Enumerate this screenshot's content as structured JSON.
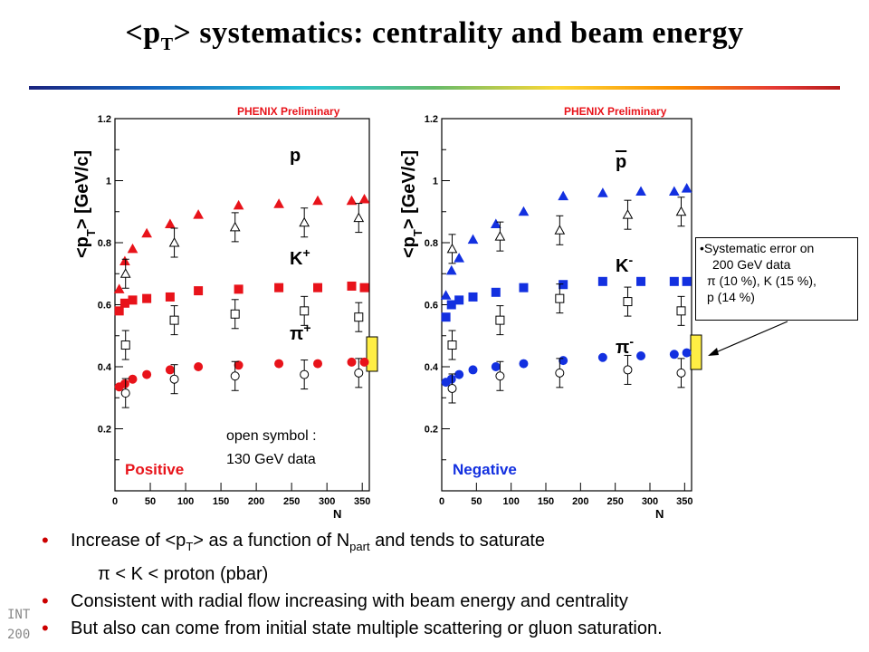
{
  "title": {
    "pre": "<p",
    "sub": "T",
    "post": "> systematics:  centrality and beam energy"
  },
  "footer": {
    "line1": "INT",
    "line2": "200"
  },
  "systematic_note": [
    "•Systematic error on",
    "200 GeV data",
    "π (10 %), K (15 %),",
    "p (14 %)"
  ],
  "colors": {
    "positive": "#e8131a",
    "negative": "#1330e0",
    "syst_band": "#ffee44"
  },
  "bullets": {
    "b1": {
      "pre": "Increase of <p",
      "sub1": "T",
      "mid": "> as a function of N",
      "sub2": "part",
      "post": " and tends to saturate"
    },
    "b1b": "π < K < proton (pbar)",
    "b2": " Consistent with radial flow increasing with beam energy and centrality",
    "b3": "But also can come from initial state multiple scattering or gluon saturation."
  },
  "chart_data": [
    {
      "type": "scatter",
      "panel_label": "Positive",
      "header": "PHENIX Preliminary",
      "ylabel": "<pT> [GeV/c]",
      "xlabel": "N",
      "xlim": [
        0,
        360
      ],
      "ylim": [
        0,
        1.2
      ],
      "xticks": [
        0,
        50,
        100,
        150,
        200,
        250,
        300,
        350
      ],
      "yticks": [
        0.2,
        0.4,
        0.6,
        0.8,
        1,
        1.2
      ],
      "open_symbol_note": [
        "open symbol :",
        "130 GeV data"
      ],
      "series": [
        {
          "name": "p",
          "label": "p",
          "energy": "200 GeV",
          "marker": "filled-triangle",
          "x": [
            6,
            14,
            25,
            45,
            78,
            118,
            175,
            232,
            287,
            335,
            353
          ],
          "y": [
            0.65,
            0.74,
            0.78,
            0.83,
            0.86,
            0.89,
            0.92,
            0.925,
            0.935,
            0.935,
            0.94
          ]
        },
        {
          "name": "K+",
          "label": "K",
          "sup": "+",
          "energy": "200 GeV",
          "marker": "filled-square",
          "x": [
            6,
            14,
            25,
            45,
            78,
            118,
            175,
            232,
            287,
            335,
            353
          ],
          "y": [
            0.58,
            0.605,
            0.615,
            0.62,
            0.625,
            0.645,
            0.65,
            0.655,
            0.655,
            0.66,
            0.655
          ]
        },
        {
          "name": "π+",
          "label": "π",
          "sup": "+",
          "energy": "200 GeV",
          "marker": "filled-circle",
          "x": [
            6,
            14,
            25,
            45,
            78,
            118,
            175,
            232,
            287,
            335,
            353
          ],
          "y": [
            0.335,
            0.345,
            0.36,
            0.375,
            0.39,
            0.4,
            0.405,
            0.41,
            0.41,
            0.415,
            0.415
          ]
        },
        {
          "name": "p 130",
          "energy": "130 GeV",
          "marker": "open-triangle",
          "x": [
            15,
            84,
            170,
            268,
            345
          ],
          "y": [
            0.7,
            0.8,
            0.85,
            0.865,
            0.88
          ]
        },
        {
          "name": "K+ 130",
          "energy": "130 GeV",
          "marker": "open-square",
          "x": [
            15,
            84,
            170,
            268,
            345
          ],
          "y": [
            0.47,
            0.55,
            0.57,
            0.58,
            0.56
          ]
        },
        {
          "name": "π+ 130",
          "energy": "130 GeV",
          "marker": "open-circle",
          "x": [
            15,
            84,
            170,
            268,
            345
          ],
          "y": [
            0.315,
            0.36,
            0.37,
            0.375,
            0.38
          ]
        }
      ]
    },
    {
      "type": "scatter",
      "panel_label": "Negative",
      "header": "PHENIX Preliminary",
      "ylabel": "<pT> [GeV/c]",
      "xlabel": "N",
      "xlim": [
        0,
        360
      ],
      "ylim": [
        0,
        1.2
      ],
      "xticks": [
        0,
        50,
        100,
        150,
        200,
        250,
        300,
        350
      ],
      "yticks": [
        0.2,
        0.4,
        0.6,
        0.8,
        1,
        1.2
      ],
      "series": [
        {
          "name": "pbar",
          "label": "p",
          "overline": true,
          "energy": "200 GeV",
          "marker": "filled-triangle",
          "x": [
            6,
            14,
            25,
            45,
            78,
            118,
            175,
            232,
            287,
            335,
            353
          ],
          "y": [
            0.63,
            0.71,
            0.75,
            0.81,
            0.86,
            0.9,
            0.95,
            0.96,
            0.965,
            0.965,
            0.975
          ]
        },
        {
          "name": "K-",
          "label": "K",
          "sup": "-",
          "energy": "200 GeV",
          "marker": "filled-square",
          "x": [
            6,
            14,
            25,
            45,
            78,
            118,
            175,
            232,
            287,
            335,
            353
          ],
          "y": [
            0.56,
            0.6,
            0.615,
            0.625,
            0.64,
            0.655,
            0.665,
            0.675,
            0.675,
            0.675,
            0.675
          ]
        },
        {
          "name": "π-",
          "label": "π",
          "sup": "-",
          "energy": "200 GeV",
          "marker": "filled-circle",
          "x": [
            6,
            14,
            25,
            45,
            78,
            118,
            175,
            232,
            287,
            335,
            353
          ],
          "y": [
            0.35,
            0.36,
            0.375,
            0.39,
            0.4,
            0.41,
            0.42,
            0.43,
            0.435,
            0.44,
            0.445
          ]
        },
        {
          "name": "pbar 130",
          "energy": "130 GeV",
          "marker": "open-triangle",
          "x": [
            15,
            84,
            170,
            268,
            345
          ],
          "y": [
            0.78,
            0.82,
            0.84,
            0.89,
            0.9
          ]
        },
        {
          "name": "K- 130",
          "energy": "130 GeV",
          "marker": "open-square",
          "x": [
            15,
            84,
            170,
            268,
            345
          ],
          "y": [
            0.47,
            0.55,
            0.62,
            0.61,
            0.58
          ]
        },
        {
          "name": "π- 130",
          "energy": "130 GeV",
          "marker": "open-circle",
          "x": [
            15,
            84,
            170,
            268,
            345
          ],
          "y": [
            0.33,
            0.37,
            0.38,
            0.39,
            0.38
          ]
        }
      ]
    }
  ]
}
